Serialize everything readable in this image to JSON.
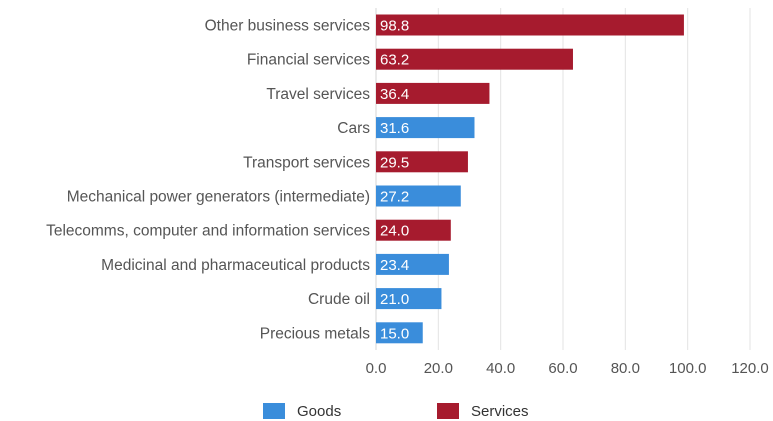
{
  "chart_data": {
    "type": "bar",
    "orientation": "horizontal",
    "title": "",
    "xlabel": "",
    "ylabel": "",
    "xlim": [
      0,
      120
    ],
    "x_ticks": [
      "0.0",
      "20.0",
      "40.0",
      "60.0",
      "80.0",
      "100.0",
      "120.0"
    ],
    "grid": "vertical gridlines on",
    "legend_position": "bottom",
    "legend": [
      {
        "name": "Goods",
        "color": "#3a8ddb"
      },
      {
        "name": "Services",
        "color": "#a61b2e"
      }
    ],
    "categories": [
      "Other business services",
      "Financial services",
      "Travel services",
      "Cars",
      "Transport services",
      "Mechanical power generators (intermediate)",
      "Telecomms, computer and information services",
      "Medicinal and pharmaceutical products",
      "Crude oil",
      "Precious metals"
    ],
    "values": [
      98.8,
      63.2,
      36.4,
      31.6,
      29.5,
      27.2,
      24.0,
      23.4,
      21.0,
      15.0
    ],
    "value_labels": [
      "98.8",
      "63.2",
      "36.4",
      "31.6",
      "29.5",
      "27.2",
      "24.0",
      "23.4",
      "21.0",
      "15.0"
    ],
    "groups": [
      "Services",
      "Services",
      "Services",
      "Goods",
      "Services",
      "Goods",
      "Services",
      "Goods",
      "Goods",
      "Goods"
    ]
  }
}
